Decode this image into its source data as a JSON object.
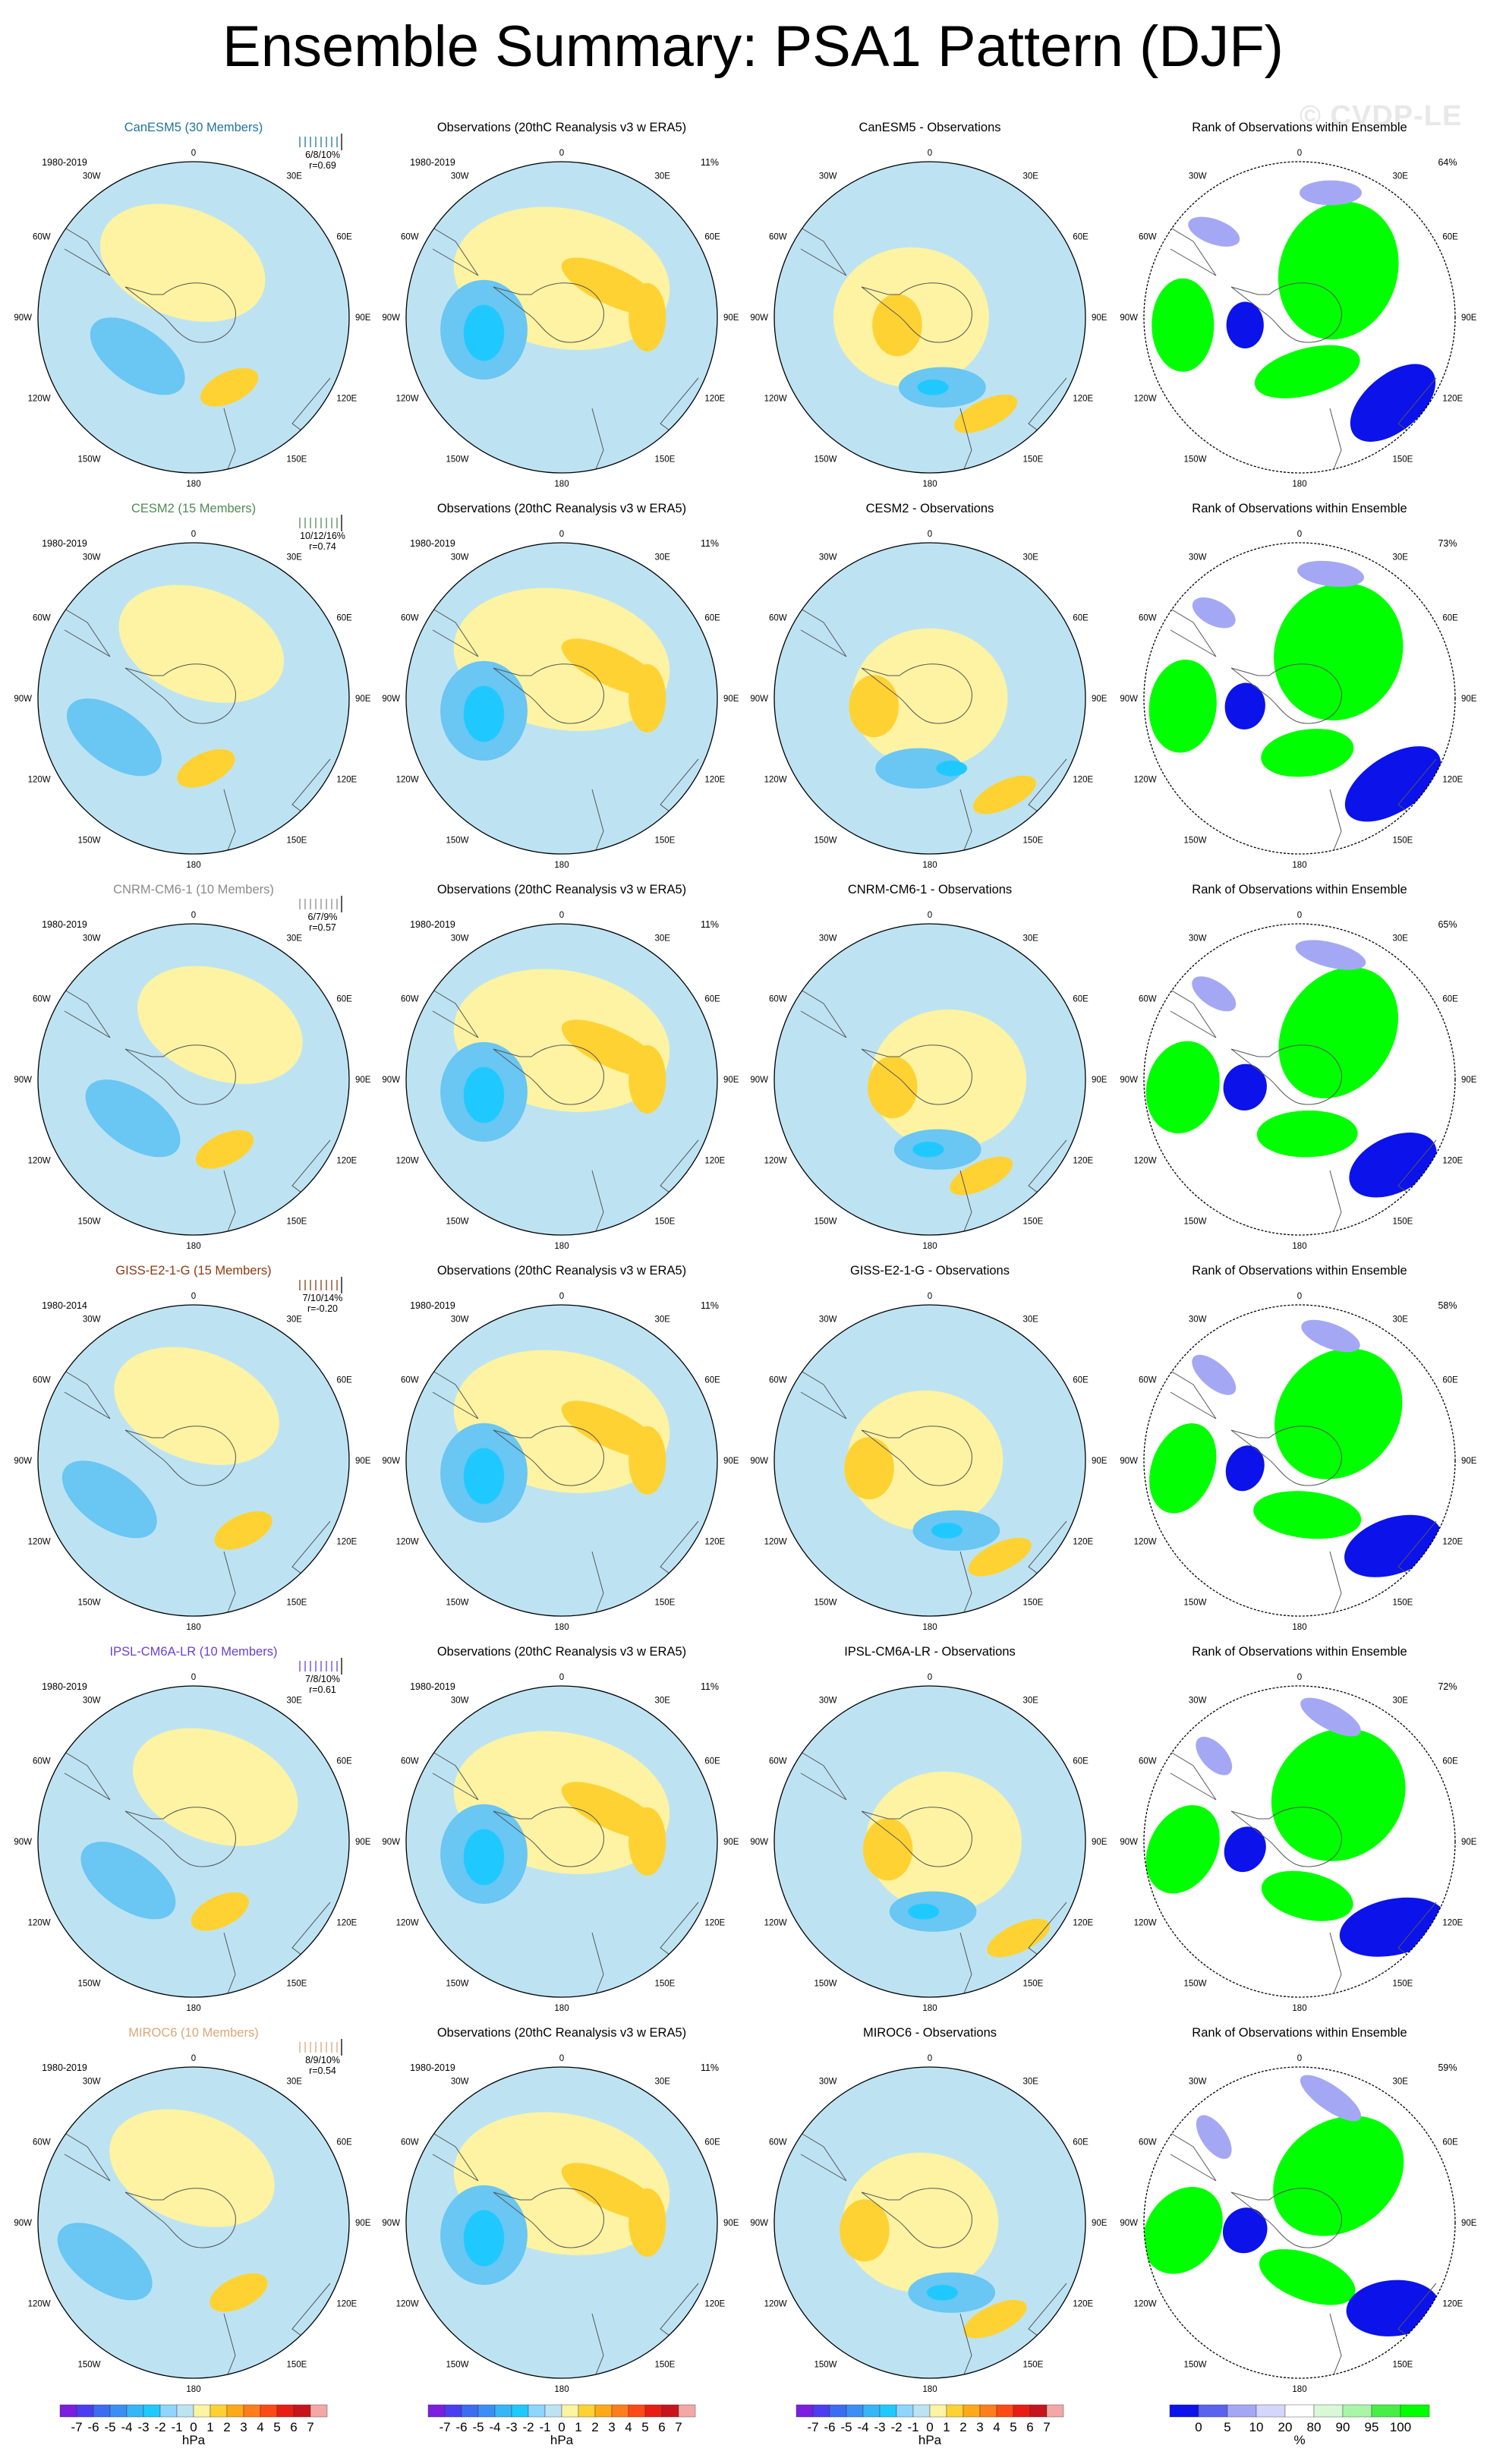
{
  "title": "Ensemble Summary: PSA1 Pattern (DJF)",
  "watermark": "© CVDP-LE",
  "rows": [
    {
      "model_title": "CanESM5 (30 Members)",
      "model_color": "#21749a",
      "years": "1980-2019",
      "stats": "6/8/10%",
      "corr": "r=0.69",
      "obs_title": "Observations (20thC Reanalysis v3 w ERA5)",
      "obs_years": "1980-2019",
      "obs_pct": "11%",
      "diff_title": "CanESM5 - Observations",
      "rank_title": "Rank of Observations within Ensemble",
      "rank_pct": "64%"
    },
    {
      "model_title": "CESM2 (15 Members)",
      "model_color": "#4f8a55",
      "years": "1980-2019",
      "stats": "10/12/16%",
      "corr": "r=0.74",
      "obs_title": "Observations (20thC Reanalysis v3 w ERA5)",
      "obs_years": "1980-2019",
      "obs_pct": "11%",
      "diff_title": "CESM2 - Observations",
      "rank_title": "Rank of Observations within Ensemble",
      "rank_pct": "73%"
    },
    {
      "model_title": "CNRM-CM6-1 (10 Members)",
      "model_color": "#8a8a8a",
      "years": "1980-2019",
      "stats": "6/7/9%",
      "corr": "r=0.57",
      "obs_title": "Observations (20thC Reanalysis v3 w ERA5)",
      "obs_years": "1980-2019",
      "obs_pct": "11%",
      "diff_title": "CNRM-CM6-1 - Observations",
      "rank_title": "Rank of Observations within Ensemble",
      "rank_pct": "65%"
    },
    {
      "model_title": "GISS-E2-1-G (15 Members)",
      "model_color": "#8c3a12",
      "years": "1980-2014",
      "stats": "7/10/14%",
      "corr": "r=-0.20",
      "obs_title": "Observations (20thC Reanalysis v3 w ERA5)",
      "obs_years": "1980-2019",
      "obs_pct": "11%",
      "diff_title": "GISS-E2-1-G - Observations",
      "rank_title": "Rank of Observations within Ensemble",
      "rank_pct": "58%"
    },
    {
      "model_title": "IPSL-CM6A-LR (10 Members)",
      "model_color": "#6b3fd4",
      "years": "1980-2019",
      "stats": "7/8/10%",
      "corr": "r=0.61",
      "obs_title": "Observations (20thC Reanalysis v3 w ERA5)",
      "obs_years": "1980-2019",
      "obs_pct": "11%",
      "diff_title": "IPSL-CM6A-LR - Observations",
      "rank_title": "Rank of Observations within Ensemble",
      "rank_pct": "72%"
    },
    {
      "model_title": "MIROC6 (10 Members)",
      "model_color": "#d9a877",
      "years": "1980-2019",
      "stats": "8/9/10%",
      "corr": "r=0.54",
      "obs_title": "Observations (20thC Reanalysis v3 w ERA5)",
      "obs_years": "1980-2019",
      "obs_pct": "11%",
      "diff_title": "MIROC6 - Observations",
      "rank_title": "Rank of Observations within Ensemble",
      "rank_pct": "59%"
    }
  ],
  "lon_labels": {
    "top": "0",
    "bottom": "180",
    "upper_left": "30W",
    "upper_right": "30E",
    "left_upper": "60W",
    "right_upper": "60E",
    "left": "90W",
    "right": "90E",
    "left_lower": "120W",
    "right_lower": "120E",
    "lower_left": "150W",
    "lower_right": "150E"
  },
  "colorbar_hpa": {
    "labels": [
      "-7",
      "-6",
      "-5",
      "-4",
      "-3",
      "-2",
      "-1",
      "0",
      "1",
      "2",
      "3",
      "4",
      "5",
      "6",
      "7"
    ],
    "unit": "hPa",
    "colors": [
      "#7a1ee0",
      "#4b3ef0",
      "#3c6cf2",
      "#3b8ff4",
      "#37b6f7",
      "#1fc9ff",
      "#8fd5ff",
      "#bde3f3",
      "#fdf3a2",
      "#ffd234",
      "#ffa91a",
      "#ff7d1a",
      "#ff4a16",
      "#e81e14",
      "#c8141c",
      "#f3a7a7"
    ]
  },
  "colorbar_rank": {
    "labels": [
      "0",
      "5",
      "10",
      "20",
      "80",
      "90",
      "95",
      "100"
    ],
    "unit": "%",
    "colors": [
      "#0b12ea",
      "#5a62ee",
      "#a4a8f4",
      "#d4d6fb",
      "#ffffff",
      "#d8f8d8",
      "#a8f5a8",
      "#46ee46",
      "#00ff00"
    ]
  },
  "palette": {
    "pos_light": "#fdf3a2",
    "pos_med": "#ffd234",
    "pos_strong": "#ffa91a",
    "neg_light": "#bde3f3",
    "neg_med": "#6ac6f2",
    "neg_strong": "#1fc9ff",
    "rank_hi": "#00ff00",
    "rank_lo": "#0b12ea",
    "rank_lo2": "#a4a8f4"
  }
}
